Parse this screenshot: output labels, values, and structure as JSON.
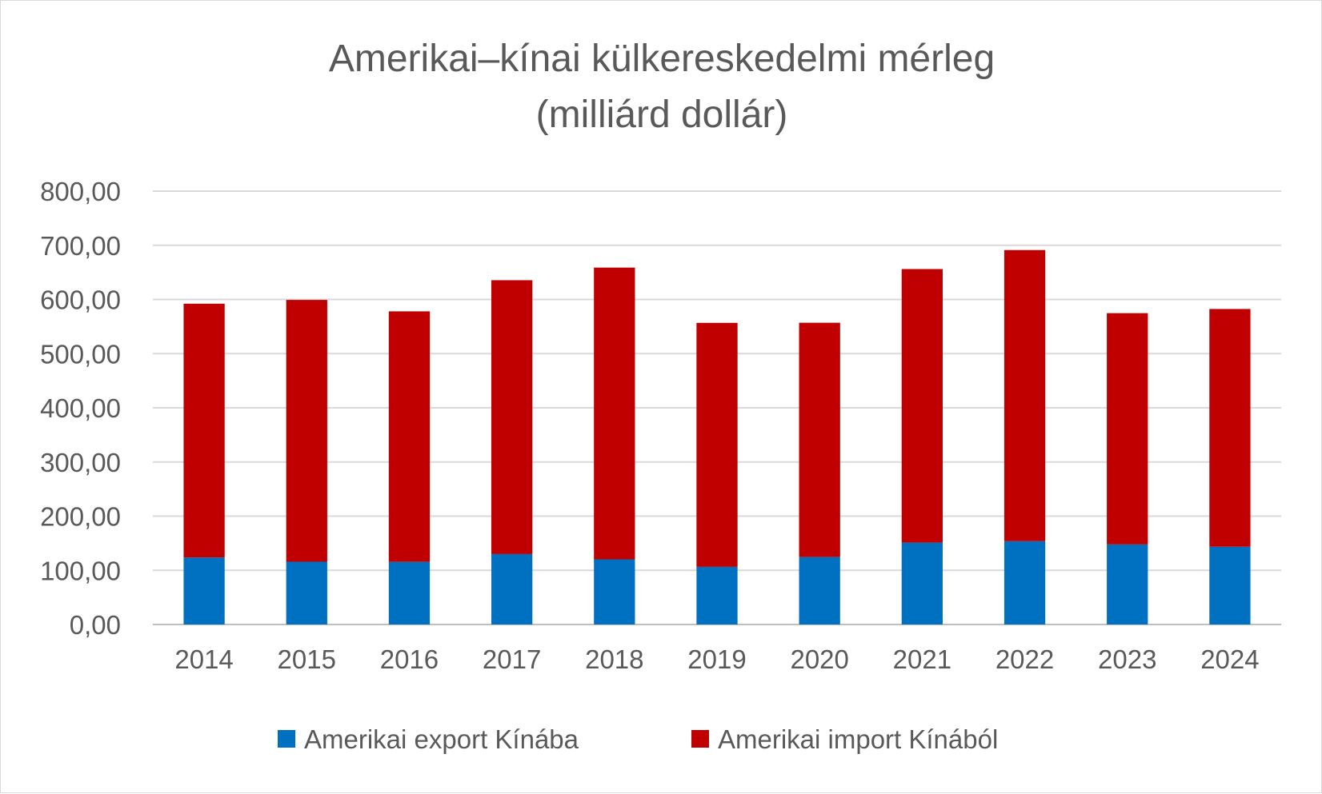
{
  "chart_data": {
    "type": "bar",
    "stacked": true,
    "title": "Amerikai–kínai külkereskedelmi mérleg",
    "subtitle": "(milliárd dollár)",
    "categories": [
      "2014",
      "2015",
      "2016",
      "2017",
      "2018",
      "2019",
      "2020",
      "2021",
      "2022",
      "2023",
      "2024"
    ],
    "series": [
      {
        "name": "Amerikai export Kínába",
        "color": "#0070c0",
        "values": [
          123.7,
          115.9,
          115.6,
          130.0,
          120.3,
          106.4,
          124.5,
          151.1,
          153.8,
          147.8,
          143.5
        ]
      },
      {
        "name": "Amerikai import Kínából",
        "color": "#c00000",
        "values": [
          468.5,
          483.2,
          462.4,
          505.5,
          538.5,
          450.4,
          432.5,
          505.0,
          537.4,
          426.9,
          438.9
        ]
      }
    ],
    "ylim": [
      0,
      800
    ],
    "yticks": [
      "0,00",
      "100,00",
      "200,00",
      "300,00",
      "400,00",
      "500,00",
      "600,00",
      "700,00",
      "800,00"
    ],
    "grid": true,
    "legend": "bottom"
  }
}
